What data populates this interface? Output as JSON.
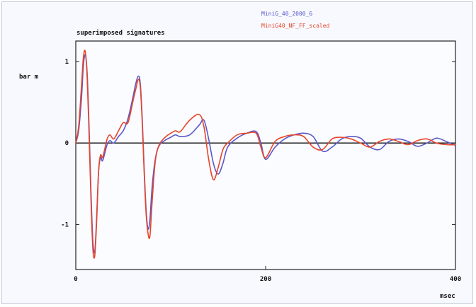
{
  "chart_data": {
    "type": "line",
    "title": "superimposed signatures",
    "ylabel": "bar m",
    "xlabel": "msec",
    "xlim": [
      0,
      400
    ],
    "ylim": [
      -1.55,
      1.25
    ],
    "x_ticks": [
      0,
      200,
      400
    ],
    "x_tick_labels": [
      "0",
      "200",
      "400"
    ],
    "y_ticks": [
      1,
      0,
      -1
    ],
    "y_tick_labels": [
      "1",
      "0",
      "-1"
    ],
    "legend_position": "top-right",
    "grid": false,
    "zero_line": true,
    "series": [
      {
        "name": "MiniG_40_2000_6",
        "color": "#5a58c8",
        "x": [
          0,
          3,
          6,
          8,
          10,
          12,
          14,
          16,
          18,
          20,
          22,
          24,
          26,
          28,
          30,
          33,
          36,
          40,
          45,
          50,
          55,
          60,
          63,
          66,
          68,
          70,
          72,
          74,
          76,
          78,
          80,
          82,
          84,
          86,
          88,
          90,
          95,
          100,
          105,
          110,
          120,
          130,
          135,
          140,
          145,
          150,
          155,
          160,
          170,
          180,
          190,
          195,
          200,
          210,
          220,
          230,
          240,
          250,
          260,
          270,
          280,
          290,
          300,
          310,
          320,
          330,
          340,
          350,
          360,
          370,
          380,
          390,
          400
        ],
        "y": [
          0,
          0.15,
          0.55,
          0.95,
          1.08,
          0.85,
          0.2,
          -0.6,
          -1.2,
          -1.33,
          -0.9,
          -0.35,
          -0.18,
          -0.22,
          -0.15,
          -0.02,
          0.03,
          0.0,
          0.08,
          0.15,
          0.3,
          0.55,
          0.72,
          0.82,
          0.72,
          0.3,
          -0.3,
          -0.8,
          -1.05,
          -0.95,
          -0.6,
          -0.35,
          -0.18,
          -0.08,
          -0.03,
          0.0,
          0.04,
          0.07,
          0.1,
          0.08,
          0.1,
          0.22,
          0.28,
          0.05,
          -0.25,
          -0.38,
          -0.25,
          -0.05,
          0.06,
          0.12,
          0.14,
          0.0,
          -0.2,
          -0.05,
          0.05,
          0.1,
          0.12,
          0.08,
          -0.1,
          -0.05,
          0.05,
          0.08,
          0.06,
          -0.05,
          -0.08,
          0.02,
          0.05,
          0.02,
          -0.04,
          0.0,
          0.06,
          0.02,
          -0.03
        ]
      },
      {
        "name": "MiniG40_NF_FF_scaled",
        "color": "#e8442a",
        "x": [
          0,
          3,
          6,
          8,
          10,
          12,
          14,
          16,
          18,
          20,
          22,
          24,
          26,
          28,
          30,
          33,
          36,
          40,
          45,
          50,
          55,
          60,
          63,
          66,
          68,
          70,
          72,
          74,
          76,
          78,
          80,
          82,
          84,
          86,
          88,
          90,
          95,
          100,
          105,
          110,
          120,
          130,
          135,
          140,
          145,
          150,
          155,
          160,
          170,
          180,
          190,
          195,
          200,
          210,
          220,
          230,
          240,
          250,
          260,
          270,
          280,
          290,
          300,
          310,
          320,
          330,
          340,
          350,
          360,
          370,
          380,
          390,
          400
        ],
        "y": [
          0,
          0.2,
          0.7,
          1.05,
          1.12,
          0.8,
          0.1,
          -0.7,
          -1.3,
          -1.38,
          -0.95,
          -0.35,
          -0.15,
          -0.18,
          -0.1,
          0.05,
          0.1,
          0.05,
          0.15,
          0.25,
          0.25,
          0.5,
          0.65,
          0.78,
          0.68,
          0.25,
          -0.35,
          -0.85,
          -1.1,
          -1.15,
          -0.8,
          -0.45,
          -0.2,
          -0.08,
          -0.02,
          0.02,
          0.08,
          0.12,
          0.15,
          0.14,
          0.28,
          0.35,
          0.2,
          -0.2,
          -0.45,
          -0.3,
          -0.08,
          0.0,
          0.1,
          0.12,
          0.12,
          -0.05,
          -0.18,
          0.02,
          0.08,
          0.1,
          0.08,
          -0.05,
          -0.08,
          0.05,
          0.07,
          0.05,
          0.0,
          -0.05,
          0.02,
          0.05,
          0.02,
          -0.02,
          0.03,
          0.05,
          0.0,
          -0.02,
          -0.02
        ]
      }
    ]
  }
}
